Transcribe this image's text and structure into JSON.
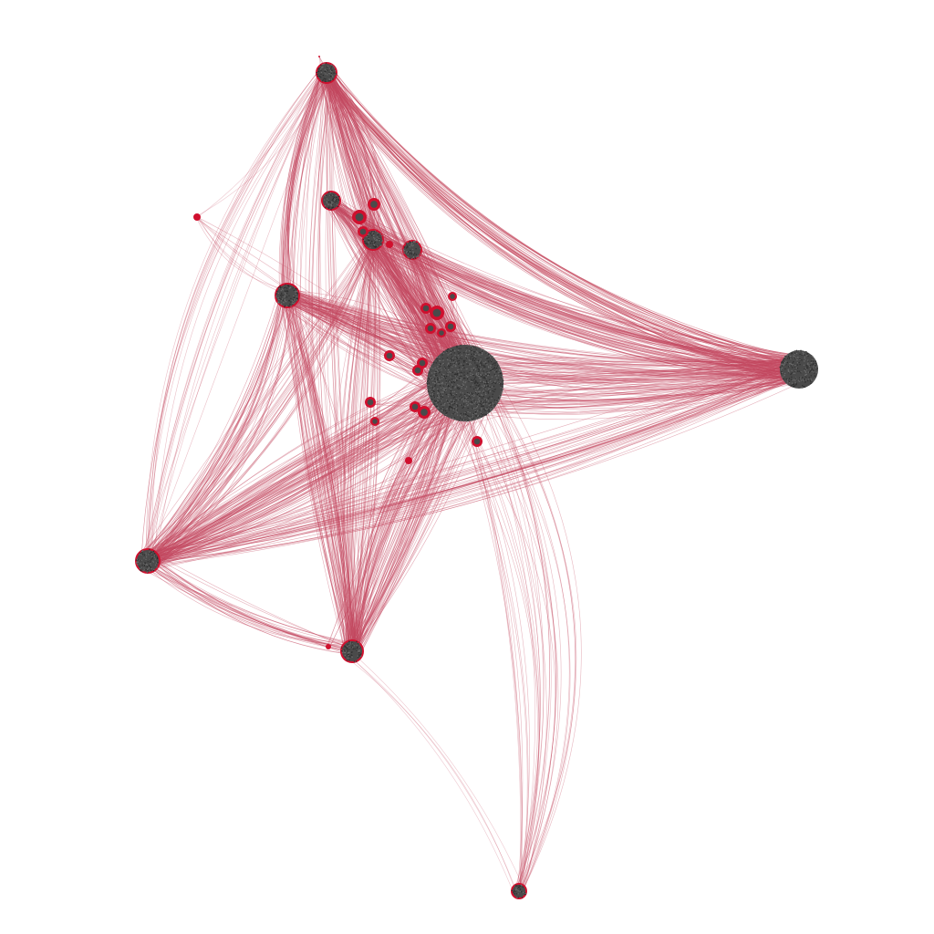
{
  "colors": {
    "background": "#ffffff",
    "edge": "#c4485f",
    "node_fill": "#d0102e",
    "cluster_core": "#4a4a4a"
  },
  "clusters": [
    {
      "id": "hub-center",
      "size": "very-large"
    },
    {
      "id": "hub-right",
      "size": "large"
    },
    {
      "id": "hub-top",
      "size": "medium"
    },
    {
      "id": "hub-left-mid",
      "size": "medium"
    },
    {
      "id": "hub-left-low",
      "size": "medium"
    },
    {
      "id": "hub-bottom-left",
      "size": "medium"
    },
    {
      "id": "hub-bottom",
      "size": "small"
    },
    {
      "id": "hub-upper-a",
      "size": "small"
    },
    {
      "id": "hub-upper-b",
      "size": "small"
    },
    {
      "id": "hub-upper-c",
      "size": "small"
    }
  ],
  "description_note": ""
}
